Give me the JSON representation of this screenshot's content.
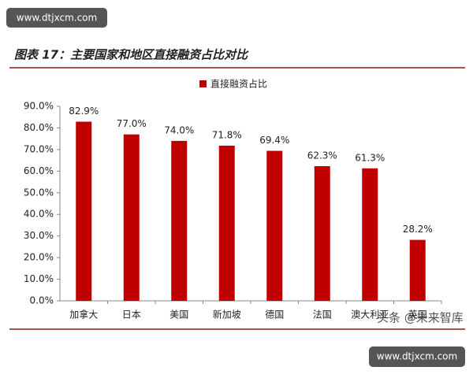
{
  "chart_data": {
    "type": "bar",
    "title": "图表 17：主要国家和地区直接融资占比对比",
    "categories": [
      "加拿大",
      "日本",
      "美国",
      "新加坡",
      "德国",
      "法国",
      "澳大利亚",
      "英国"
    ],
    "series": [
      {
        "name": "直接融资占比",
        "color": "#c00000",
        "values": [
          82.9,
          77.0,
          74.0,
          71.8,
          69.4,
          62.3,
          61.3,
          28.2
        ],
        "value_labels": [
          "82.9%",
          "77.0%",
          "74.0%",
          "71.8%",
          "69.4%",
          "62.3%",
          "61.3%",
          "28.2%"
        ]
      }
    ],
    "ylim": [
      0,
      90
    ],
    "yticks": [
      {
        "value": 0,
        "label": "0.0%"
      },
      {
        "value": 10,
        "label": "10.0%"
      },
      {
        "value": 20,
        "label": "20.0%"
      },
      {
        "value": 30,
        "label": "30.0%"
      },
      {
        "value": 40,
        "label": "40.0%"
      },
      {
        "value": 50,
        "label": "50.0%"
      },
      {
        "value": 60,
        "label": "60.0%"
      },
      {
        "value": 70,
        "label": "70.0%"
      },
      {
        "value": 80,
        "label": "80.0%"
      },
      {
        "value": 90,
        "label": "90.0%"
      }
    ],
    "grid": false
  },
  "watermarks": {
    "top": "www.dtjxcm.com",
    "overlay": "头条 @未来智库",
    "bottom": "www.dtjxcm.com"
  }
}
